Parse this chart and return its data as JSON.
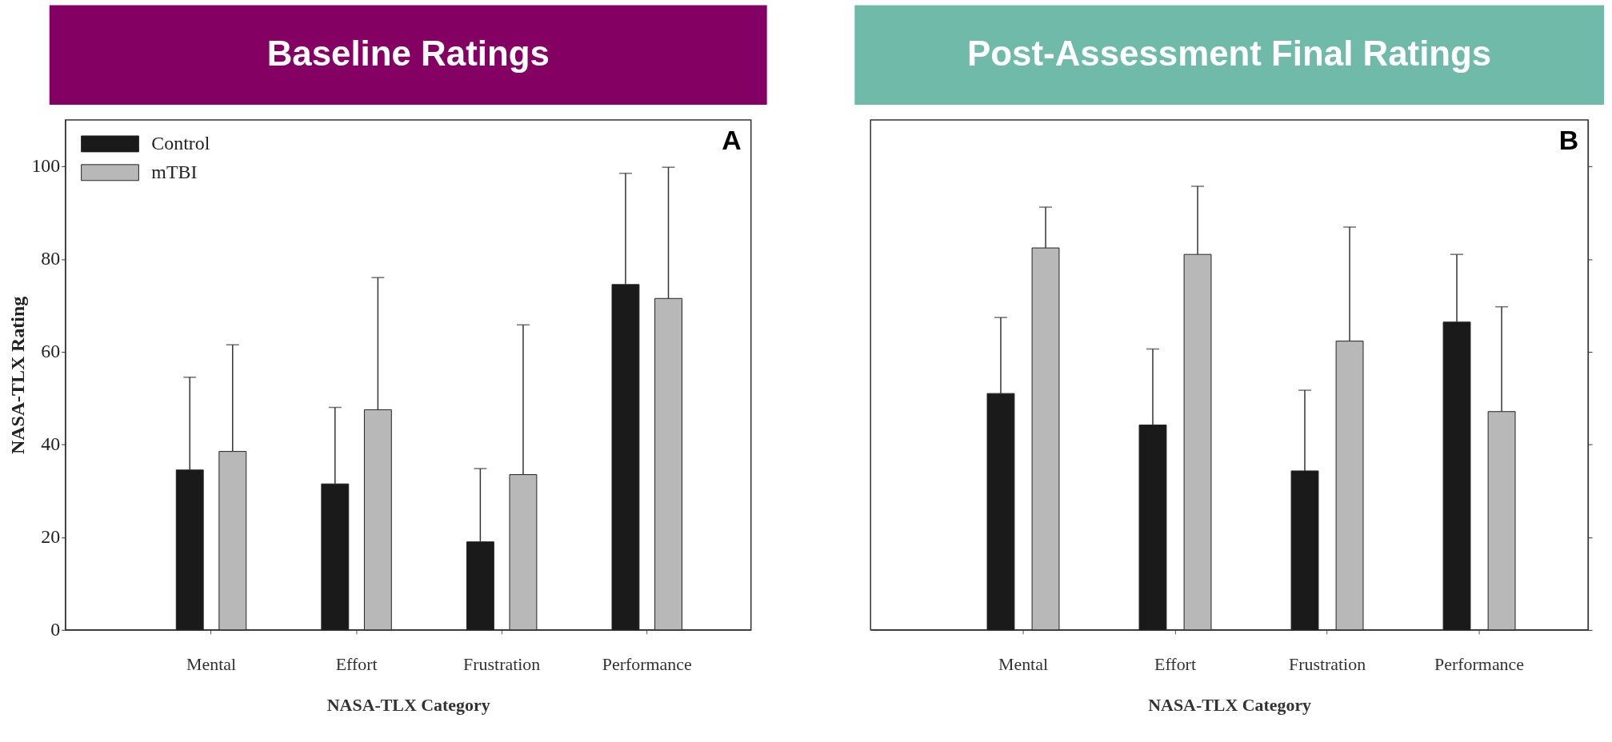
{
  "chart_data": [
    {
      "type": "bar",
      "title": "Baseline Ratings",
      "xlabel": "NASA-TLX Category",
      "ylabel": "NASA-TLX Rating",
      "categories": [
        "Mental",
        "Effort",
        "Frustration",
        "Performance"
      ],
      "ylim": [
        0,
        110
      ],
      "yticks": [
        0,
        20,
        40,
        60,
        80,
        100
      ],
      "legend": "top left",
      "annotations": [
        "A"
      ],
      "series": [
        {
          "name": "Control",
          "color": "#1a1a1a",
          "values": [
            34.5,
            31.5,
            19,
            74.5
          ],
          "errors": [
            [
              34.5,
              54.5
            ],
            [
              31.5,
              48
            ],
            [
              19,
              34.8
            ],
            [
              74.5,
              98.5
            ]
          ]
        },
        {
          "name": "mTBI",
          "color": "#b8b8b8",
          "values": [
            38.5,
            47.5,
            33.5,
            71.5
          ],
          "errors": [
            [
              38.5,
              61.5
            ],
            [
              47.5,
              76
            ],
            [
              33.5,
              65.8
            ],
            [
              71.5,
              99.8
            ]
          ]
        }
      ]
    },
    {
      "type": "bar",
      "title": "Post-Assessment Final Ratings",
      "xlabel": "NASA-TLX Category",
      "categories": [
        "Mental",
        "Effort",
        "Frustration",
        "Performance"
      ],
      "ylim": [
        0,
        110
      ],
      "yticks": [
        0,
        20,
        40,
        60,
        80,
        100
      ],
      "tick_labels": "x",
      "annotations": [
        "B"
      ],
      "series": [
        {
          "color": "#1a1a1a",
          "values": [
            51,
            44.2,
            34.3,
            66.4
          ],
          "errors": [
            [
              51,
              67.4
            ],
            [
              44.2,
              60.6
            ],
            [
              34.3,
              51.7
            ],
            [
              66.4,
              81
            ]
          ]
        },
        {
          "color": "#b8b8b8",
          "values": [
            82.4,
            81,
            62.3,
            47.1
          ],
          "errors": [
            [
              82.4,
              91.2
            ],
            [
              81,
              95.7
            ],
            [
              62.3,
              86.9
            ],
            [
              47.1,
              69.7
            ]
          ]
        }
      ]
    }
  ]
}
